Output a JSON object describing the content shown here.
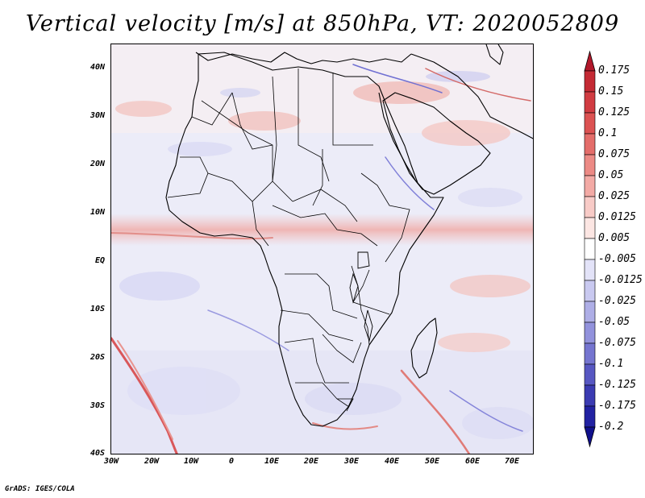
{
  "title": "Vertical velocity [m/s] at 850hPa, VT: 2020052809",
  "lat_labels": [
    "40N",
    "30N",
    "20N",
    "10N",
    "EQ",
    "10S",
    "20S",
    "30S",
    "40S"
  ],
  "lon_labels": [
    "30W",
    "20W",
    "10W",
    "0",
    "10E",
    "20E",
    "30E",
    "40E",
    "50E",
    "60E",
    "70E"
  ],
  "colorbar": {
    "labels": [
      "0.175",
      "0.15",
      "0.125",
      "0.1",
      "0.075",
      "0.05",
      "0.025",
      "0.0125",
      "0.005",
      "-0.005",
      "-0.0125",
      "-0.025",
      "-0.05",
      "-0.075",
      "-0.1",
      "-0.125",
      "-0.175",
      "-0.2"
    ],
    "colors": [
      "#b2182b",
      "#c42a34",
      "#d13c42",
      "#dc5252",
      "#e46d6a",
      "#ec8a85",
      "#f3aaa5",
      "#f8cbc7",
      "#fce6e3",
      "#ffffff",
      "#e3e3f8",
      "#c9c9f0",
      "#aeaee6",
      "#9292dc",
      "#7575d0",
      "#5757c2",
      "#3b3bb2",
      "#2222a2",
      "#10108c"
    ]
  },
  "credit": "GrADS: IGES/COLA"
}
